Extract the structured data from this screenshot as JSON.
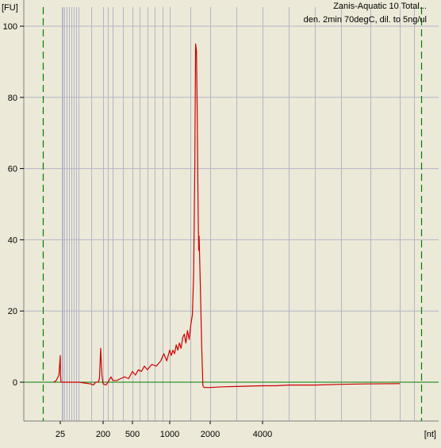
{
  "chart_data": {
    "type": "line",
    "title": "Zanis-Aquatic 10 Total...",
    "subtitle": "den. 2min 70degC, dil. to 5ng/ul",
    "ylabel": "[FU]",
    "xlabel": "[nt]",
    "ylim": [
      -11,
      103
    ],
    "y_ticks": [
      0,
      20,
      40,
      60,
      80,
      100
    ],
    "x_ticks": [
      {
        "label": "25",
        "pos": 25
      },
      {
        "label": "200",
        "pos": 200
      },
      {
        "label": "500",
        "pos": 500
      },
      {
        "label": "1000",
        "pos": 1000
      },
      {
        "label": "2000",
        "pos": 2000
      },
      {
        "label": "4000",
        "pos": 4000
      }
    ],
    "grid": true,
    "colors": {
      "trace": "#cc0000",
      "baseline": "#008000",
      "markers": "#008000",
      "grid": "#b4b4c8",
      "plot_bg": "#ece9d8"
    },
    "series": [
      {
        "color": "#cc0000",
        "points": [
          [
            20,
            0
          ],
          [
            22,
            0.5
          ],
          [
            24,
            2
          ],
          [
            25,
            7.5
          ],
          [
            26,
            2
          ],
          [
            28,
            0
          ],
          [
            30,
            0
          ],
          [
            100,
            0
          ],
          [
            150,
            -0.5
          ],
          [
            160,
            -0.8
          ],
          [
            170,
            0
          ],
          [
            180,
            0
          ],
          [
            185,
            1
          ],
          [
            190,
            9.5
          ],
          [
            195,
            2
          ],
          [
            200,
            -0.5
          ],
          [
            230,
            -0.8
          ],
          [
            260,
            0.5
          ],
          [
            280,
            1.5
          ],
          [
            300,
            0.5
          ],
          [
            340,
            0.5
          ],
          [
            380,
            1
          ],
          [
            420,
            1.5
          ],
          [
            460,
            1
          ],
          [
            500,
            3
          ],
          [
            540,
            2
          ],
          [
            580,
            3.5
          ],
          [
            620,
            3
          ],
          [
            660,
            4.5
          ],
          [
            700,
            3.5
          ],
          [
            760,
            5
          ],
          [
            820,
            4.5
          ],
          [
            880,
            6
          ],
          [
            920,
            8
          ],
          [
            960,
            6
          ],
          [
            1000,
            9
          ],
          [
            1040,
            7.5
          ],
          [
            1080,
            9
          ],
          [
            1120,
            8
          ],
          [
            1160,
            10.5
          ],
          [
            1200,
            9
          ],
          [
            1240,
            11
          ],
          [
            1280,
            9.5
          ],
          [
            1320,
            12.5
          ],
          [
            1360,
            13.5
          ],
          [
            1400,
            11
          ],
          [
            1440,
            14.5
          ],
          [
            1480,
            12
          ],
          [
            1520,
            16
          ],
          [
            1560,
            19
          ],
          [
            1590,
            30
          ],
          [
            1620,
            60
          ],
          [
            1640,
            95
          ],
          [
            1660,
            93
          ],
          [
            1680,
            75
          ],
          [
            1700,
            50
          ],
          [
            1715,
            37
          ],
          [
            1725,
            41
          ],
          [
            1735,
            37
          ],
          [
            1760,
            25
          ],
          [
            1790,
            10
          ],
          [
            1820,
            -1
          ],
          [
            1850,
            -1.5
          ],
          [
            2000,
            -1.5
          ],
          [
            2500,
            -1.3
          ],
          [
            3000,
            -1.2
          ],
          [
            4000,
            -1
          ],
          [
            5000,
            -1
          ],
          [
            6000,
            -0.8
          ],
          [
            8000,
            -0.8
          ],
          [
            10000,
            -0.6
          ],
          [
            14000,
            -0.5
          ],
          [
            20000,
            -0.4
          ]
        ]
      }
    ]
  }
}
